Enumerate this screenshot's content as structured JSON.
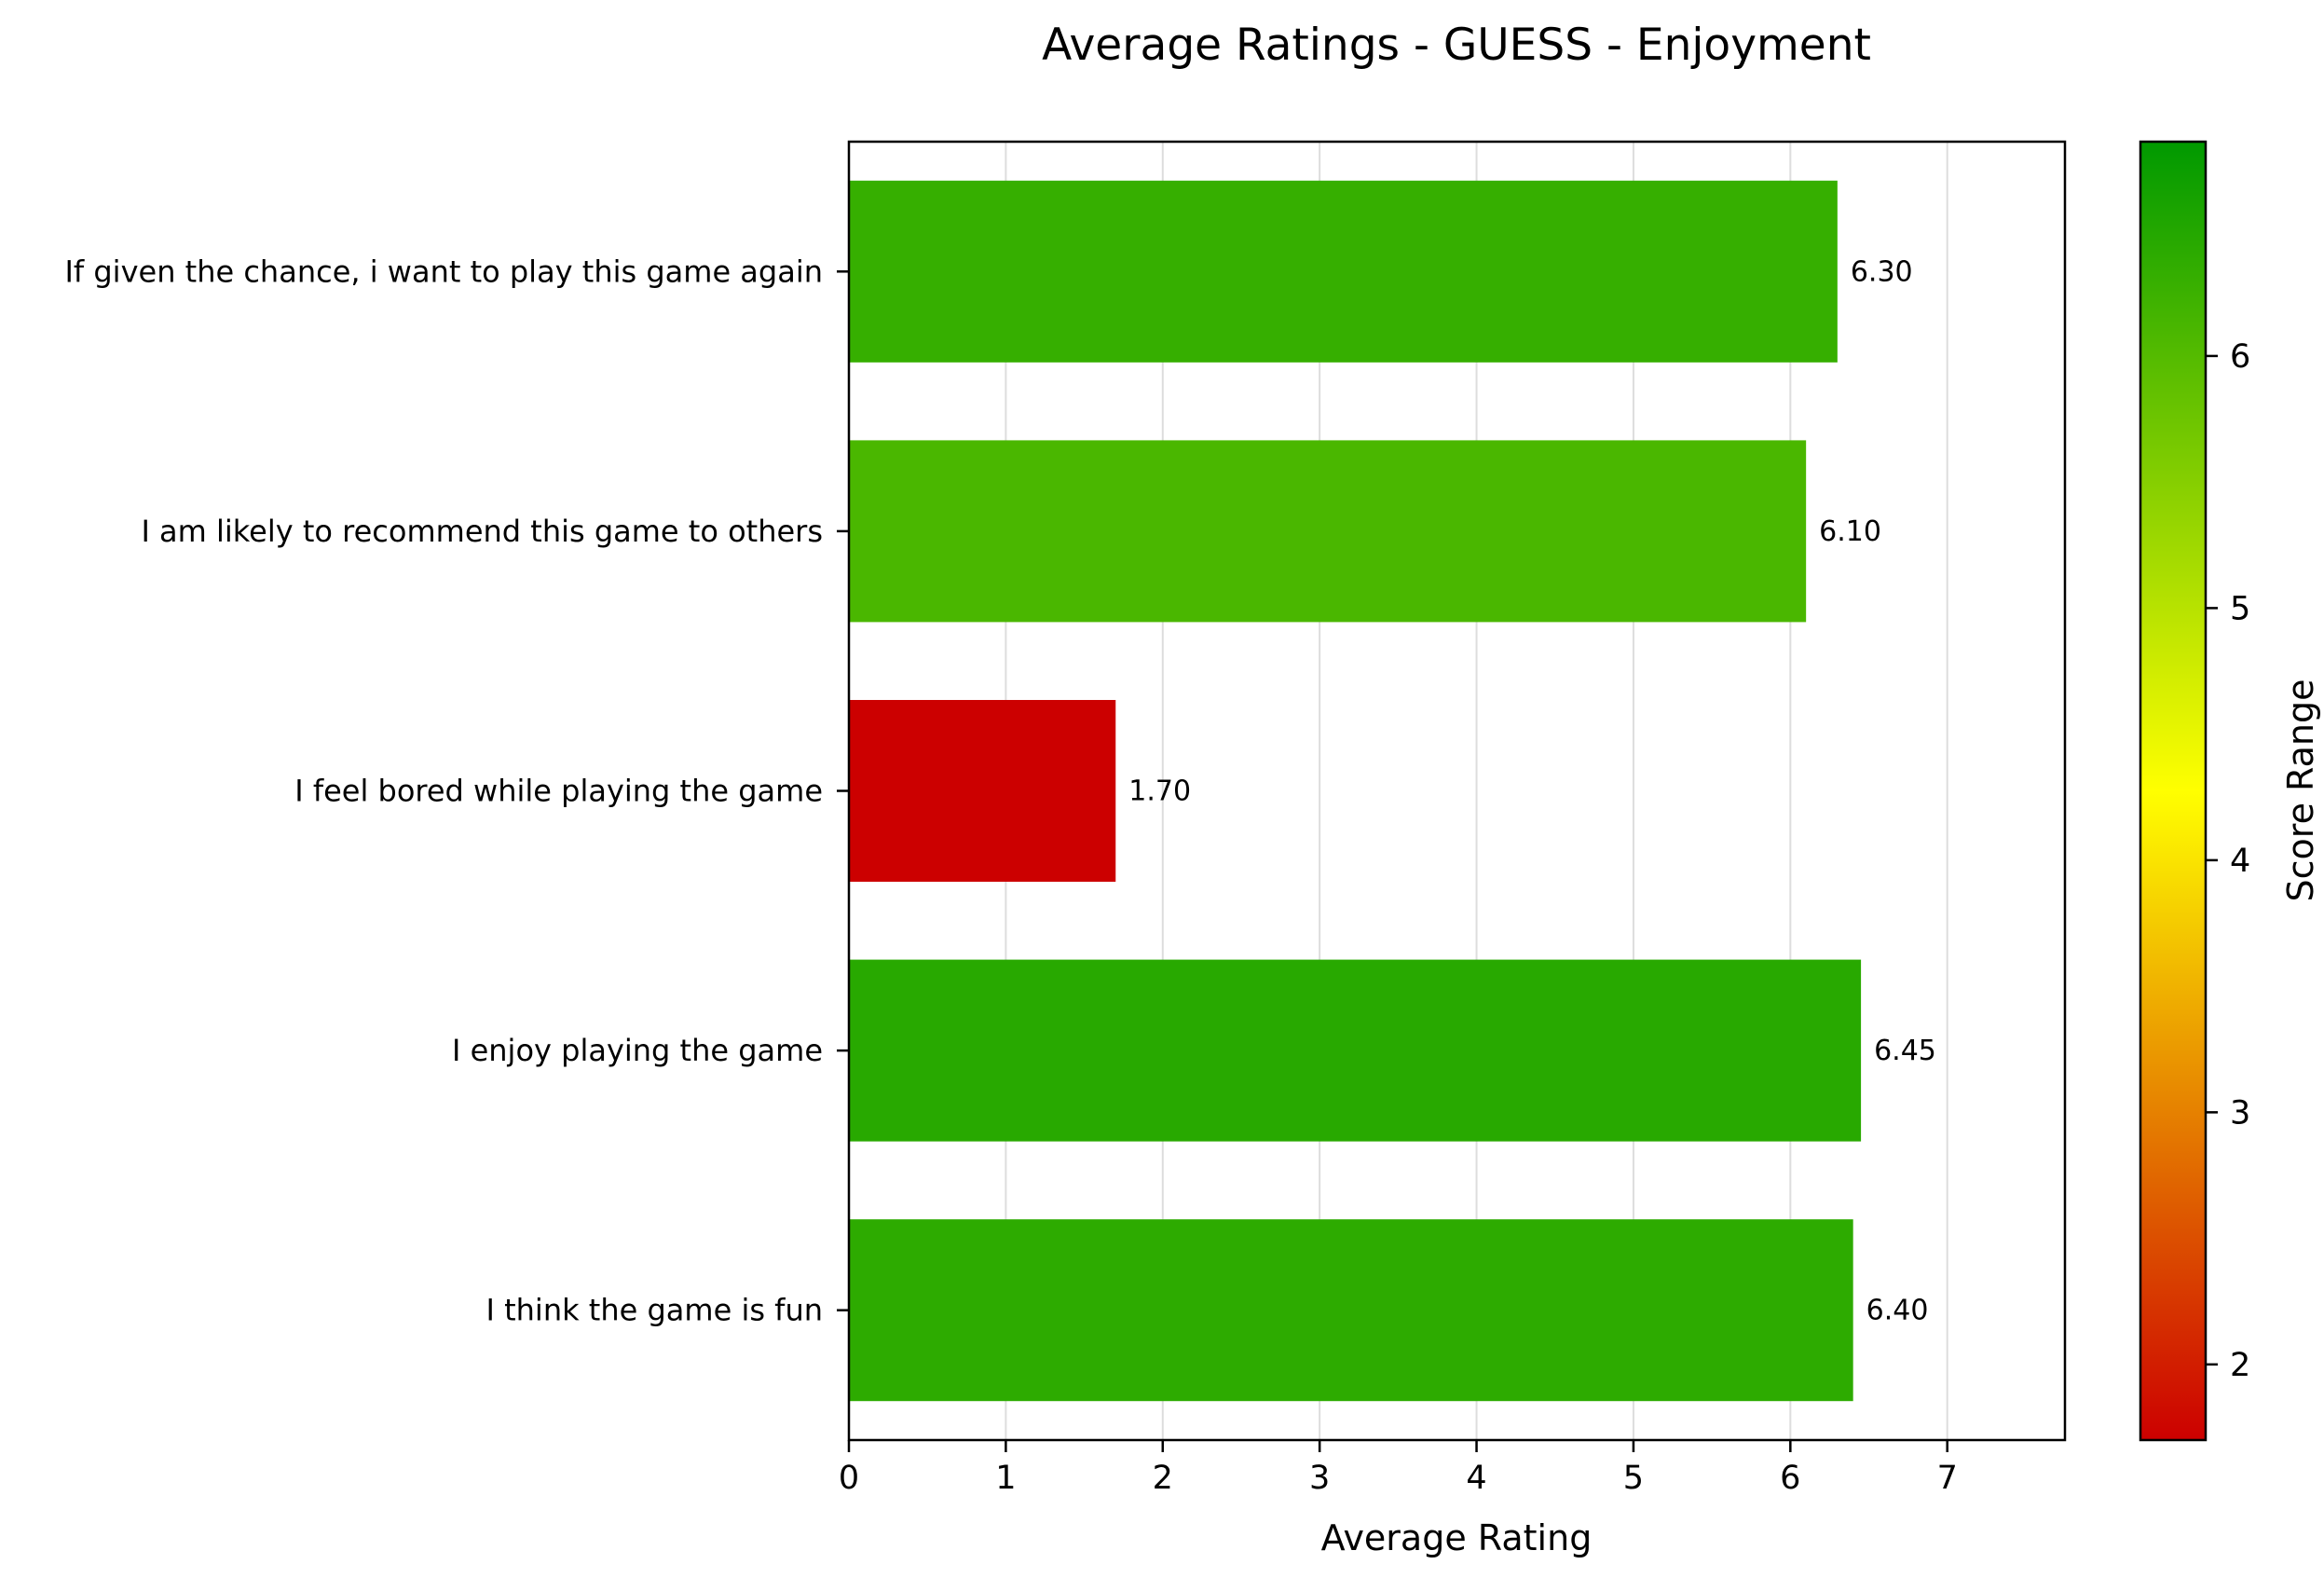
{
  "chart_data": {
    "type": "bar",
    "orientation": "horizontal",
    "title": "Average Ratings - GUESS - Enjoyment",
    "xlabel": "Average Rating",
    "ylabel": "",
    "xlim": [
      0,
      7.75
    ],
    "xticks": [
      "0",
      "1",
      "2",
      "3",
      "4",
      "5",
      "6",
      "7"
    ],
    "grid": "vertical",
    "categories": [
      "If given the chance, i want to play this game again",
      "I am likely to recommend this game to others ",
      "I feel bored while playing the game",
      "I enjoy playing the game",
      "I think the game is fun"
    ],
    "values": [
      6.3,
      6.1,
      1.7,
      6.45,
      6.4
    ],
    "value_labels": [
      "6.30",
      "6.10",
      "1.70",
      "6.45",
      "6.40"
    ],
    "colorbar": {
      "label": "Score Range",
      "range": [
        1.7,
        6.85
      ],
      "ticks": [
        "2",
        "3",
        "4",
        "5",
        "6"
      ],
      "colors": [
        "#cc0000",
        "#ffff00",
        "#009900"
      ]
    }
  }
}
